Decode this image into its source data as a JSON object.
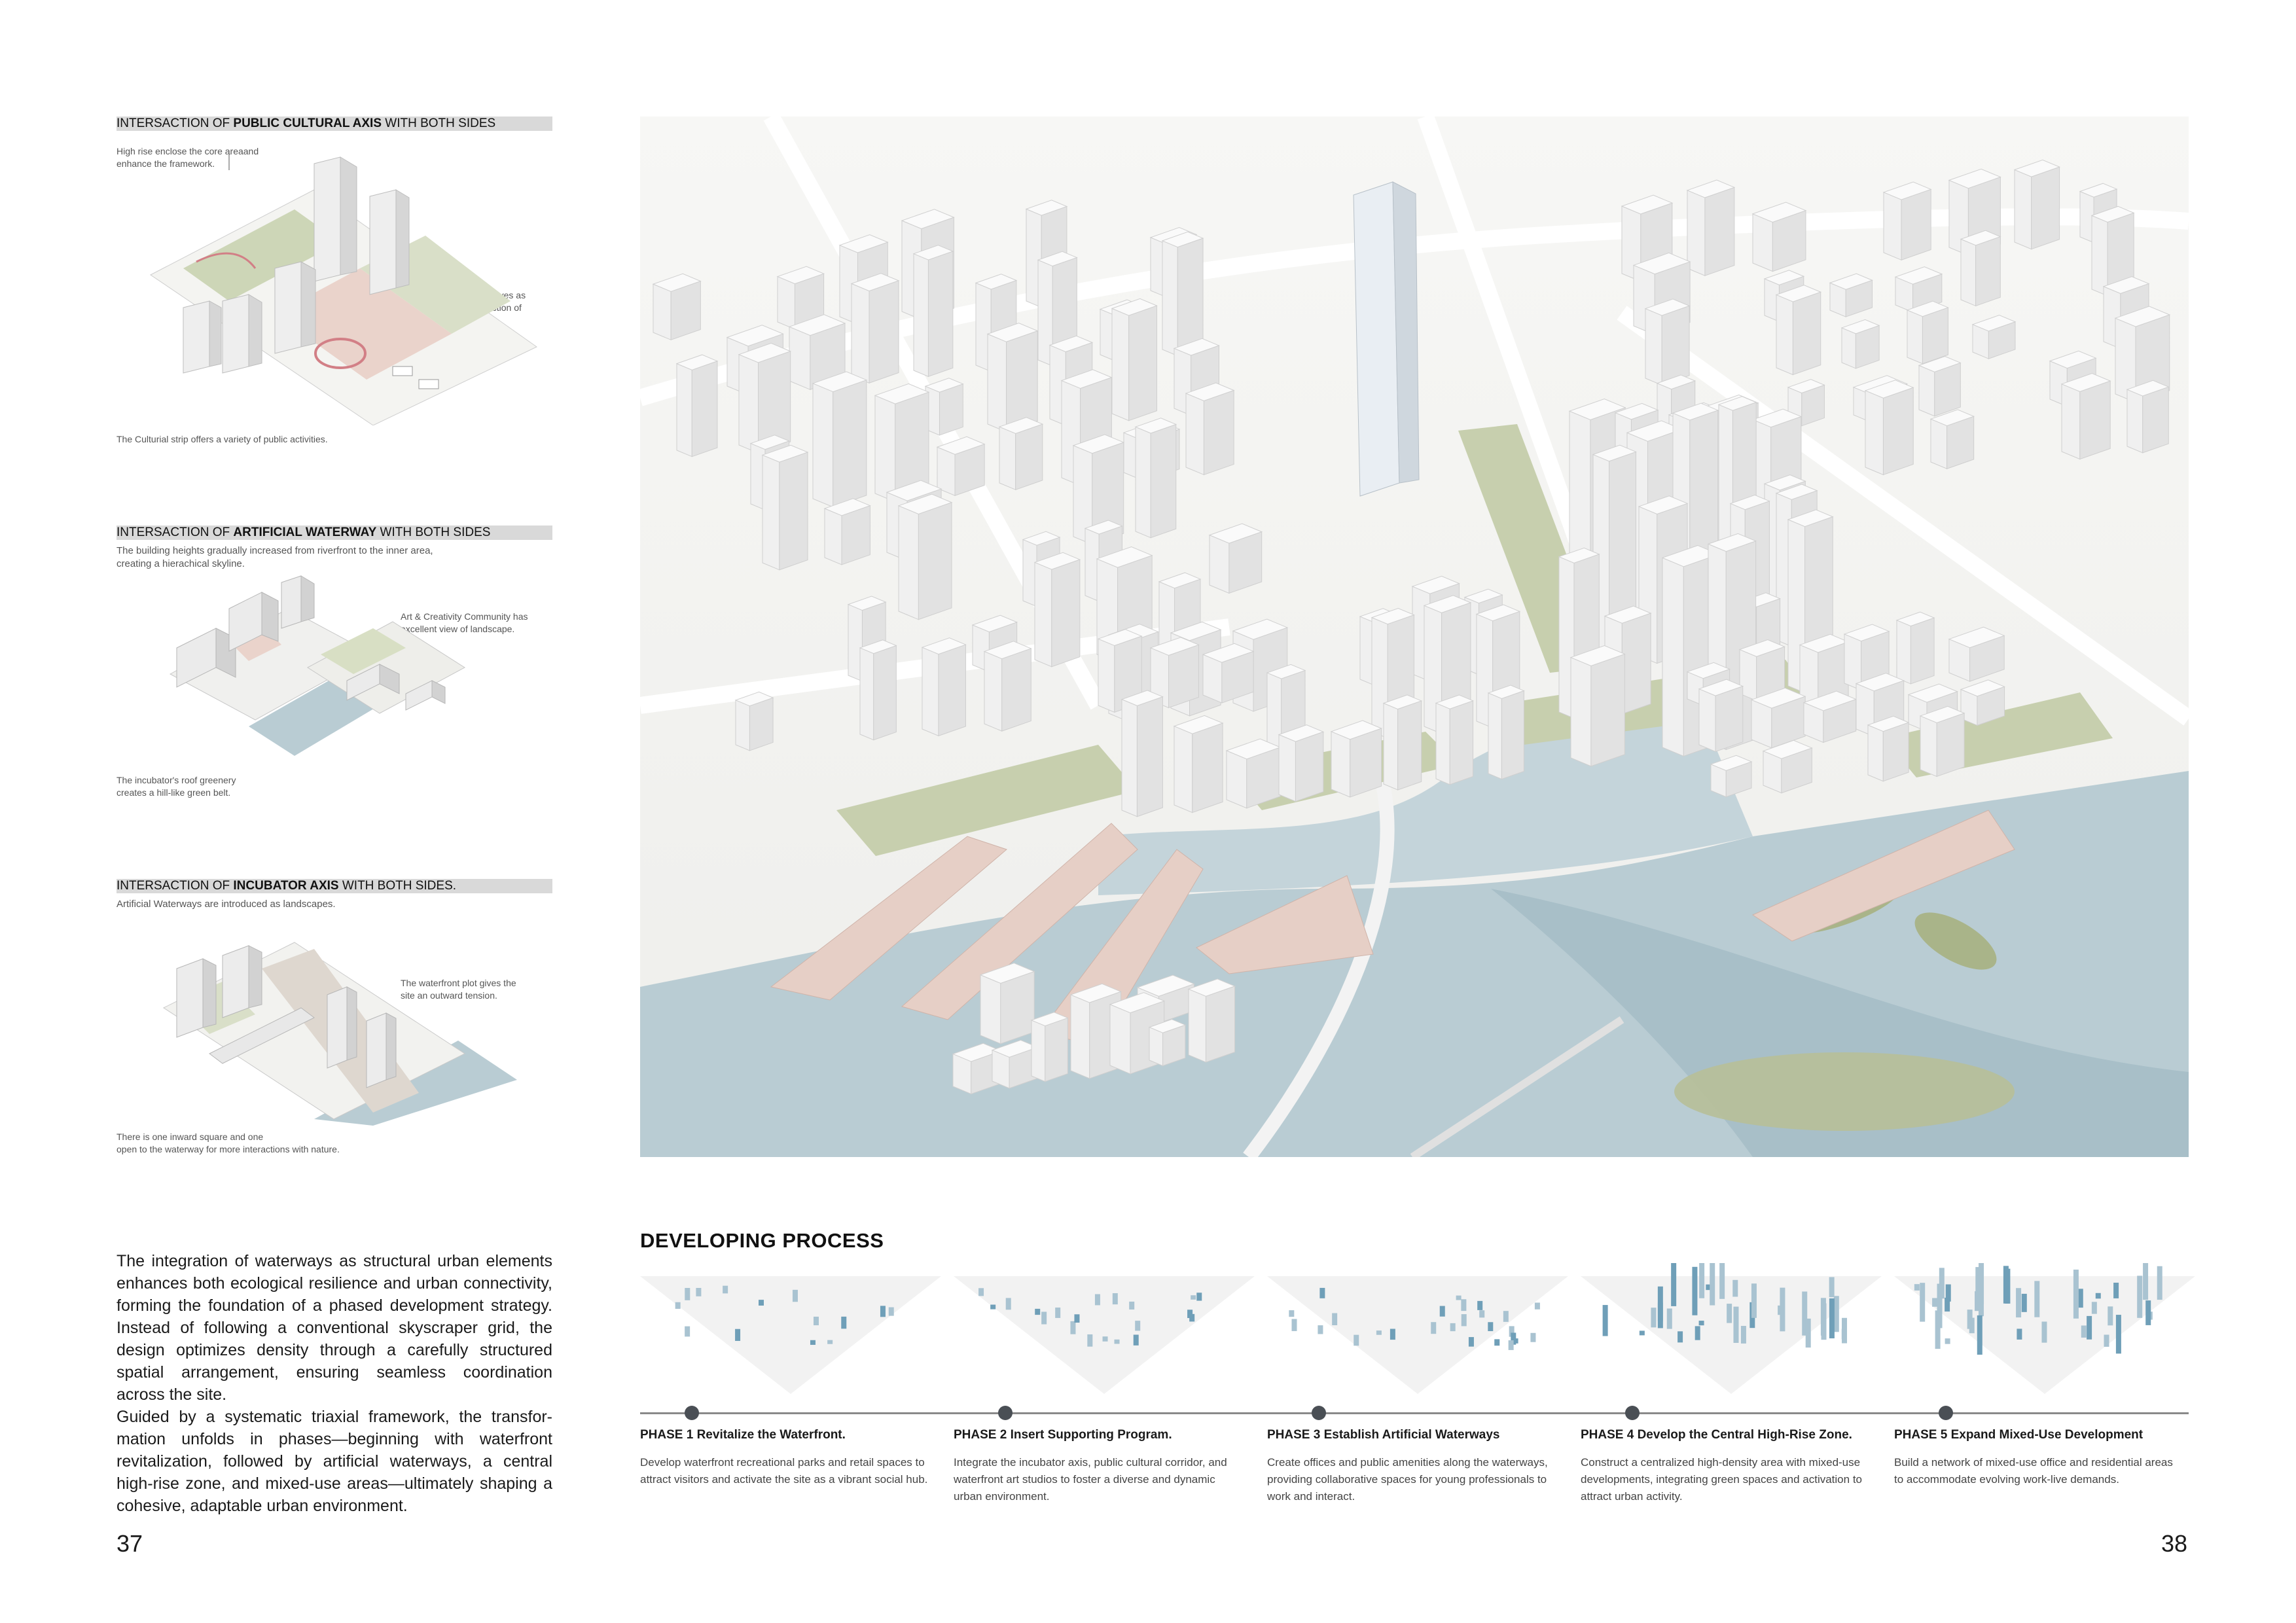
{
  "panels": [
    {
      "heading_pre": "INTERSACTION OF ",
      "heading_bold": "PUBLIC CULTURAL AXIS",
      "heading_post": " WITH BOTH SIDES",
      "notes": [
        "High rise enclose the core areaand\nenhance the framework.",
        "The surken space serves as\nthe core and intersection of\nthe three strips.",
        "The Culturial strip offers a variety of public activities."
      ]
    },
    {
      "heading_pre": "INTERSACTION OF ",
      "heading_bold": "ARTIFICIAL WATERWAY",
      "heading_post": " WITH BOTH SIDES",
      "subtitle": "The building heights gradually increased from riverfront to the inner area,\ncreating a hierachical skyline.",
      "notes": [
        "Art & Creativity Community has\nexcellent view of landscape.",
        "The incubator's roof greenery\ncreates a hill-like green belt."
      ]
    },
    {
      "heading_pre": "INTERSACTION OF ",
      "heading_bold": "INCUBATOR AXIS",
      "heading_post": " WITH BOTH SIDES.",
      "subtitle": "Artificial Waterways are introduced as landscapes.",
      "notes": [
        "The waterfront plot gives the\nsite an outward tension.",
        "There is one inward square and one\nopen to the waterway for more interactions with nature."
      ]
    }
  ],
  "intro": {
    "p1": "The integration of waterways as structural urban elements enhances both ecological resilience and urban connectivity, forming the foundation of a phased development strategy. Instead of following a conventional skyscraper grid, the design optimizes density through a carefully structured spatial arrangement, ensuring seamless coordination across the site.",
    "p2": "Guided by a systematic triaxial framework, the transfor-mation unfolds in phases—beginning with waterfront revitalization, followed by artificial waterways, a central high-rise zone, and mixed-use areas—ultimately shaping a cohesive, adaptable urban environment."
  },
  "page_left": "37",
  "page_right": "38",
  "developing": {
    "title": "DEVELOPING PROCESS",
    "phases": [
      {
        "title": "PHASE 1 Revitalize the Waterfront.",
        "desc": "Develop waterfront recreational parks and retail spaces to attract visitors and activate the site as a vibrant social hub."
      },
      {
        "title": "PHASE 2 Insert Supporting Program.",
        "desc": "Integrate the incubator axis, public cultural corridor, and waterfront art studios to foster a diverse and dynamic urban environment."
      },
      {
        "title": "PHASE 3 Establish Artificial Waterways",
        "desc": "Create offices and public amenities along the waterways, providing collaborative spaces for young professionals to work and interact."
      },
      {
        "title": "PHASE 4 Develop the Central High-Rise Zone.",
        "desc": "Construct a centralized high-density area with mixed-use developments, integrating green spaces and activation to attract urban activity."
      },
      {
        "title": "PHASE 5 Expand Mixed-Use Development",
        "desc": "Build a network of mixed-use office and residential areas to accommodate evolving work-live demands."
      }
    ]
  },
  "colors": {
    "water": "#b9ccd3",
    "green": "#b7c29a",
    "plaza": "#e6cfc6",
    "building": "#f1f1f1",
    "accent": "#6f9fb8"
  }
}
